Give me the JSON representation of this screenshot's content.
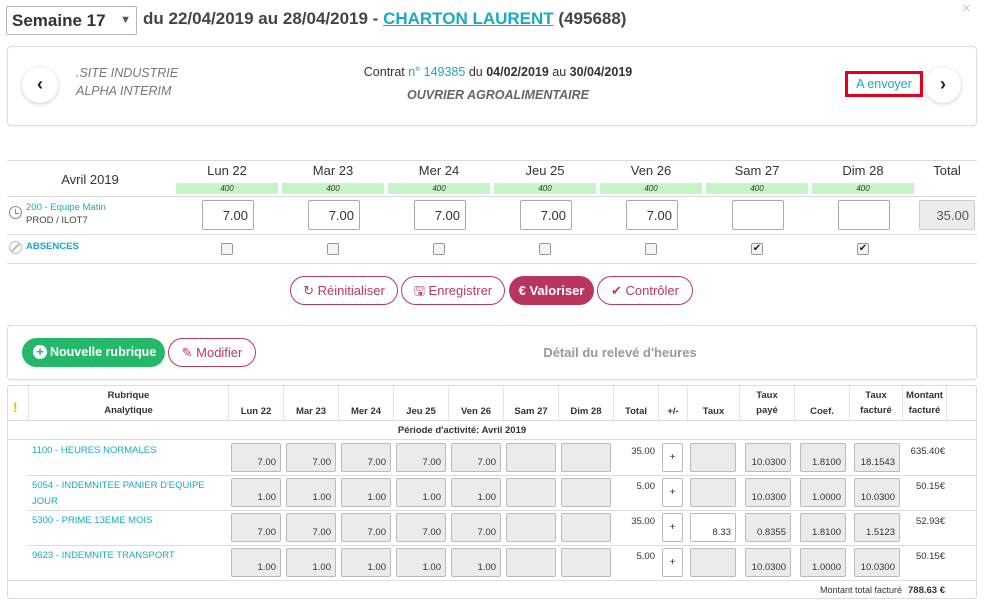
{
  "header": {
    "week_value": "Semaine 17",
    "date_range": "du 22/04/2019 au 28/04/2019 - ",
    "employee_name": "CHARTON LAURENT",
    "employee_id": "(495688)",
    "close_glyph": "×"
  },
  "contract": {
    "prev_glyph": "‹",
    "next_glyph": "›",
    "site": ".SITE INDUSTRIE",
    "agency": "ALPHA INTERIM",
    "contract_prefix": "Contrat ",
    "contract_num": "n° 149385",
    "du_text": " du ",
    "start": "04/02/2019",
    "au_text": " au ",
    "end": "30/04/2019",
    "job_title": "OUVRIER AGROALIMENTAIRE",
    "send_label": "A envoyer"
  },
  "week": {
    "month": "Avril 2019",
    "total_label": "Total",
    "days": [
      {
        "label": "Lun 22",
        "bar": "400",
        "hours": "7.00",
        "absence": false
      },
      {
        "label": "Mar 23",
        "bar": "400",
        "hours": "7.00",
        "absence": false
      },
      {
        "label": "Mer 24",
        "bar": "400",
        "hours": "7.00",
        "absence": false
      },
      {
        "label": "Jeu 25",
        "bar": "400",
        "hours": "7.00",
        "absence": false
      },
      {
        "label": "Ven 26",
        "bar": "400",
        "hours": "7.00",
        "absence": false
      },
      {
        "label": "Sam 27",
        "bar": "400",
        "hours": "",
        "absence": true
      },
      {
        "label": "Dim 28",
        "bar": "400",
        "hours": "",
        "absence": true
      }
    ],
    "team": "200 - Equipe Matin",
    "team_sub": "PROD / ILOT7",
    "total_hours": "35.00",
    "absences_label": "ABSENCES"
  },
  "actions": {
    "reset": "↻ Réinitialiser",
    "save": "🖫 Enregistrer",
    "valorize": "€ Valoriser",
    "check": "✔ Contrôler"
  },
  "detail": {
    "new_rubric": "Nouvelle rubrique",
    "modify": "✎ Modifier",
    "title": "Détail du relevé d'heures",
    "excl": "!",
    "columns": {
      "rubrique": "Rubrique",
      "analytique": "Analytique",
      "lun": "Lun 22",
      "mar": "Mar 23",
      "mer": "Mer 24",
      "jeu": "Jeu 25",
      "ven": "Ven 26",
      "sam": "Sam 27",
      "dim": "Dim 28",
      "total": "Total",
      "pm": "+/-",
      "taux": "Taux",
      "taux_paye_1": "Taux",
      "taux_paye_2": "payé",
      "coef": "Coef.",
      "taux_fact_1": "Taux",
      "taux_fact_2": "facturé",
      "montant_1": "Montant",
      "montant_2": "facturé"
    },
    "period": "Période d'activité: Avril 2019",
    "rows": [
      {
        "l1": "1100 - HEURES NORMALES",
        "l2": "",
        "days": [
          "7.00",
          "7.00",
          "7.00",
          "7.00",
          "7.00",
          "",
          ""
        ],
        "total": "35.00",
        "pm": "+",
        "taux": "",
        "taux_paye": "10.0300",
        "coef": "1.8100",
        "taux_facture": "18.1543",
        "montant": "635.40€"
      },
      {
        "l1": "5054 - INDEMNITEE PANIER D'EQUIPE",
        "l2": "JOUR",
        "days": [
          "1.00",
          "1.00",
          "1.00",
          "1.00",
          "1.00",
          "",
          ""
        ],
        "total": "5.00",
        "pm": "+",
        "taux": "",
        "taux_paye": "10.0300",
        "coef": "1.0000",
        "taux_facture": "10.0300",
        "montant": "50.15€"
      },
      {
        "l1": "5300 - PRIME 13EME MOIS",
        "l2": "",
        "days": [
          "7.00",
          "7.00",
          "7.00",
          "7.00",
          "7.00",
          "",
          ""
        ],
        "total": "35.00",
        "pm": "+",
        "taux": "8.33",
        "taux_paye": "0.8355",
        "coef": "1.8100",
        "taux_facture": "1.5123",
        "montant": "52.93€"
      },
      {
        "l1": "9623 - INDEMNITE TRANSPORT",
        "l2": "",
        "days": [
          "1.00",
          "1.00",
          "1.00",
          "1.00",
          "1.00",
          "",
          ""
        ],
        "total": "5.00",
        "pm": "+",
        "taux": "",
        "taux_paye": "10.0300",
        "coef": "1.0000",
        "taux_facture": "10.0300",
        "montant": "50.15€"
      }
    ],
    "footer_label": "Montant total facturé",
    "footer_value": "788.63 €"
  }
}
